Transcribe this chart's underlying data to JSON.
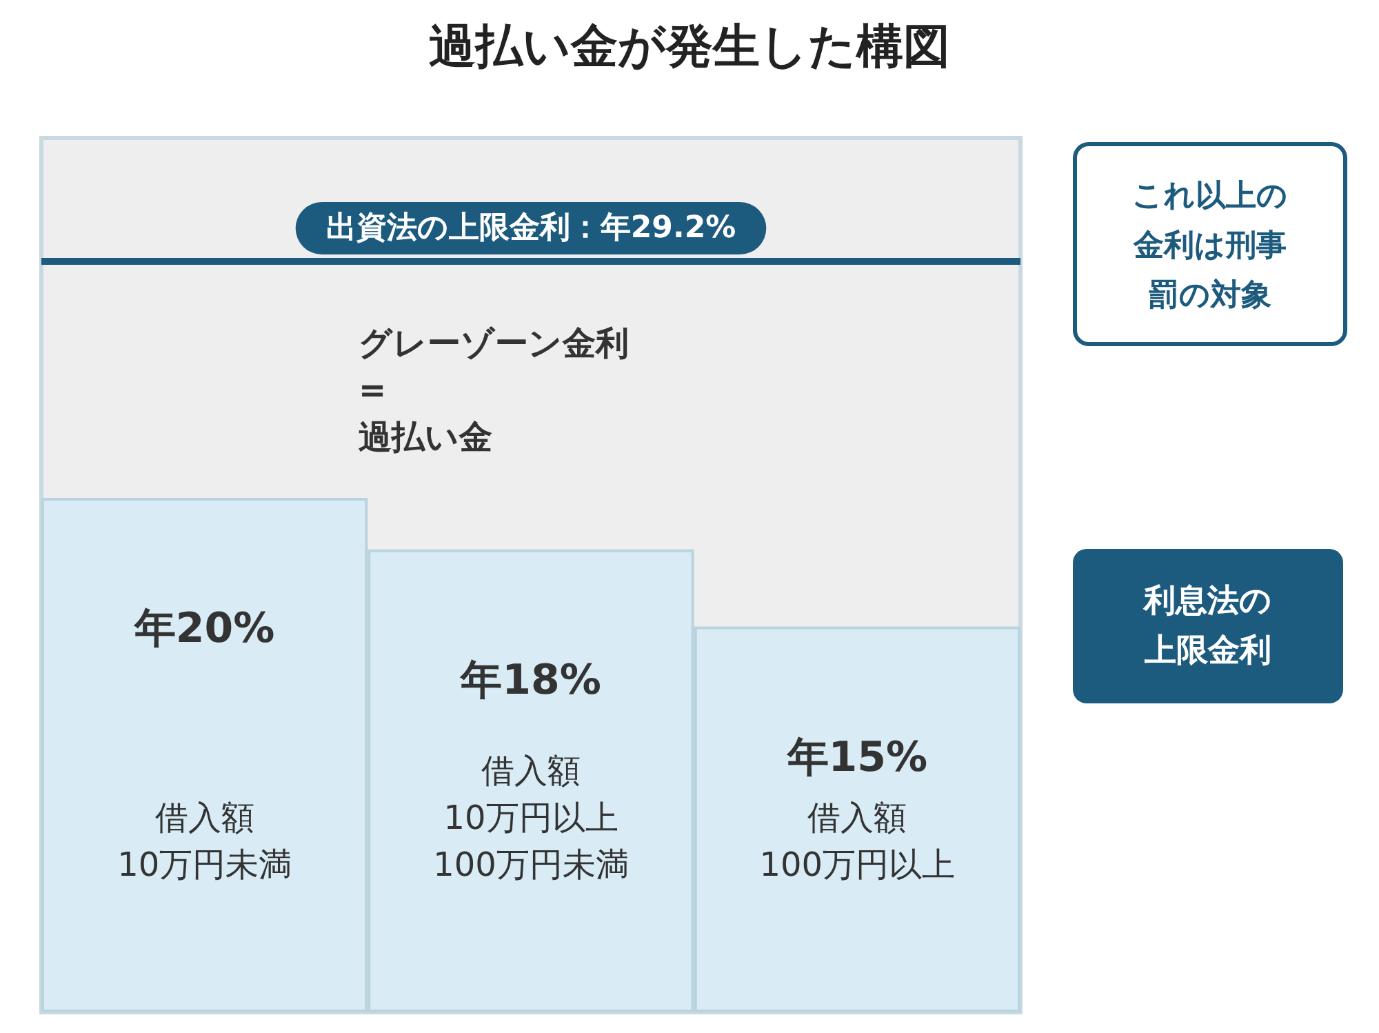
{
  "chart_data": {
    "type": "bar",
    "title": "過払い金が発生した構図",
    "categories": [
      "借入額\n10万円未満",
      "借入額\n10万円以上\n100万円未満",
      "借入額\n100万円以上"
    ],
    "values": [
      20,
      18,
      15
    ],
    "color": "#d9ecf5",
    "value_labels": [
      "年20%",
      "年18%",
      "年15%"
    ],
    "ylim": [
      0,
      34
    ],
    "ref_lines": [
      {
        "axis": "y",
        "value": 29.2,
        "label": "出資法の上限金利：年29.2%",
        "color": "#1d5b7e"
      }
    ],
    "annotations": [
      "グレーゾーン金利\n=\n過払い金",
      "これ以上の金利は刑事罰の対象",
      "利息法の上限金利"
    ]
  }
}
